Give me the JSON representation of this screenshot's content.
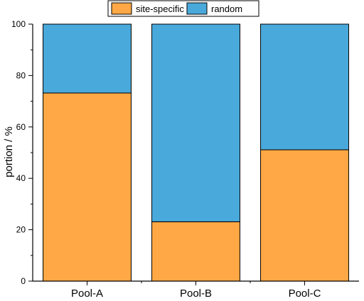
{
  "chart_data": {
    "type": "bar",
    "stacked": true,
    "categories": [
      "Pool-A",
      "Pool-B",
      "Pool-C"
    ],
    "series": [
      {
        "name": "site-specific",
        "values": [
          73.2,
          23.1,
          51.1
        ],
        "color": "#FFA845"
      },
      {
        "name": "random",
        "values": [
          26.8,
          76.9,
          48.9
        ],
        "color": "#4AA9DB"
      }
    ],
    "ylabel": "portion / %",
    "xlabel": "",
    "ylim": [
      0,
      100
    ],
    "yticks": [
      0,
      20,
      40,
      60,
      80,
      100
    ],
    "grid": false,
    "legend_position": "top-center"
  }
}
